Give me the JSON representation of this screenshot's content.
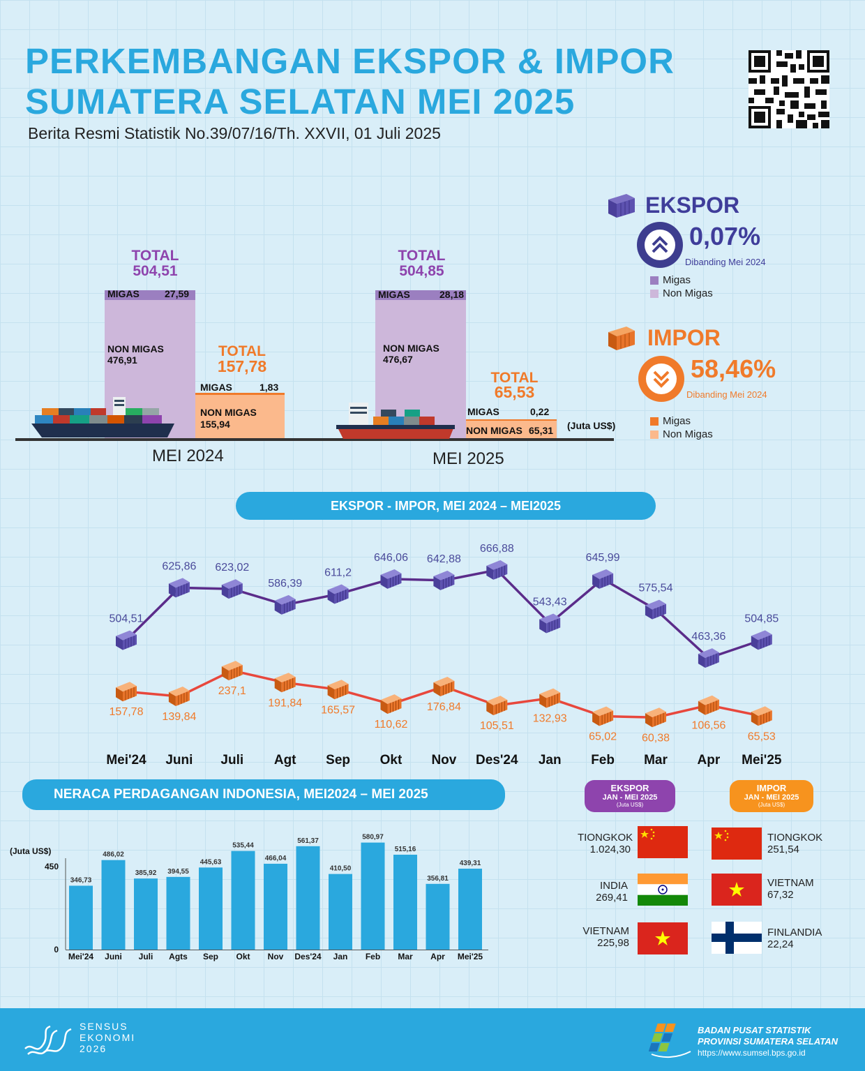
{
  "header": {
    "title_line1": "PERKEMBANGAN EKSPOR & IMPOR",
    "title_line2": "SUMATERA SELATAN MEI 2025",
    "subtitle": "Berita Resmi Statistik No.39/07/16/Th. XXVII, 01 Juli 2025"
  },
  "comparison": {
    "unit": "(Juta US$)",
    "migas_label": "MIGAS",
    "nonmigas_label": "NON MIGAS",
    "total_label": "TOTAL",
    "years": [
      {
        "label": "MEI 2024",
        "ekspor": {
          "total": "504,51",
          "migas": "27,59",
          "nonmigas": "476,91"
        },
        "impor": {
          "total": "157,78",
          "migas": "1,83",
          "nonmigas": "155,94"
        }
      },
      {
        "label": "MEI 2025",
        "ekspor": {
          "total": "504,85",
          "migas": "28,18",
          "nonmigas": "476,67"
        },
        "impor": {
          "total": "65,53",
          "migas": "0,22",
          "nonmigas": "65,31"
        }
      }
    ]
  },
  "summary": {
    "ekspor": {
      "title": "EKSPOR",
      "pct": "0,07%",
      "note": "Dibanding Mei 2024",
      "legend": [
        "Migas",
        "Non Migas"
      ],
      "colors": [
        "#9b7fc0",
        "#cdb7da"
      ]
    },
    "impor": {
      "title": "IMPOR",
      "pct": "58,46%",
      "note": "Dibanding Mei 2024",
      "legend": [
        "Migas",
        "Non Migas"
      ],
      "colors": [
        "#f07a2a",
        "#fbb98c"
      ]
    }
  },
  "chart_data": [
    {
      "type": "line",
      "title": "EKSPOR - IMPOR, MEI 2024 – MEI2025",
      "categories": [
        "Mei'24",
        "Juni",
        "Juli",
        "Agt",
        "Sep",
        "Okt",
        "Nov",
        "Des'24",
        "Jan",
        "Feb",
        "Mar",
        "Apr",
        "Mei'25"
      ],
      "series": [
        {
          "name": "Ekspor",
          "color": "#5b2c8a",
          "values": [
            504.51,
            625.86,
            623.02,
            586.39,
            611.2,
            646.06,
            642.88,
            666.88,
            543.43,
            645.99,
            575.54,
            463.36,
            504.85
          ],
          "labels": [
            "504,51",
            "625,86",
            "623,02",
            "586,39",
            "611,2",
            "646,06",
            "642,88",
            "666,88",
            "543,43",
            "645,99",
            "575,54",
            "463,36",
            "504,85"
          ]
        },
        {
          "name": "Impor",
          "color": "#e8473c",
          "values": [
            157.78,
            139.84,
            237.1,
            191.84,
            165.57,
            110.62,
            176.84,
            105.51,
            132.93,
            65.02,
            60.38,
            106.56,
            65.53
          ],
          "labels": [
            "157,78",
            "139,84",
            "237,1",
            "191,84",
            "165,57",
            "110,62",
            "176,84",
            "105,51",
            "132,93",
            "65,02",
            "60,38",
            "106,56",
            "65,53"
          ]
        }
      ]
    },
    {
      "type": "bar",
      "title": "NERACA PERDAGANGAN INDONESIA, MEI2024 – MEI 2025",
      "ylabel": "(Juta US$)",
      "yticks": [
        "450",
        "0"
      ],
      "ylim": [
        0,
        600
      ],
      "categories": [
        "Mei'24",
        "Juni",
        "Juli",
        "Agts",
        "Sep",
        "Okt",
        "Nov",
        "Des'24",
        "Jan",
        "Feb",
        "Mar",
        "Apr",
        "Mei'25"
      ],
      "values": [
        346.73,
        486.02,
        385.92,
        394.55,
        445.63,
        535.44,
        466.04,
        561.37,
        410.5,
        580.97,
        515.16,
        356.81,
        439.31
      ],
      "labels": [
        "346,73",
        "486,02",
        "385,92",
        "394,55",
        "445,63",
        "535,44",
        "466,04",
        "561,37",
        "410,50",
        "580,97",
        "515,16",
        "356,81",
        "439,31"
      ],
      "color": "#2aa8de"
    }
  ],
  "partners": {
    "ekspor": {
      "title": "EKSPOR",
      "period": "JAN - MEI 2025",
      "unit": "(Juta US$)",
      "countries": [
        {
          "name": "TIONGKOK",
          "value": "1.024,30",
          "flag": "china-flag"
        },
        {
          "name": "INDIA",
          "value": "269,41",
          "flag": "india-flag"
        },
        {
          "name": "VIETNAM",
          "value": "225,98",
          "flag": "vietnam-flag"
        }
      ]
    },
    "impor": {
      "title": "IMPOR",
      "period": "JAN - MEI 2025",
      "unit": "(Juta US$)",
      "countries": [
        {
          "name": "TIONGKOK",
          "value": "251,54",
          "flag": "china-flag"
        },
        {
          "name": "VIETNAM",
          "value": "67,32",
          "flag": "vietnam-flag"
        },
        {
          "name": "FINLANDIA",
          "value": "22,24",
          "flag": "finland-flag"
        }
      ]
    }
  },
  "footer": {
    "sensus_line1": "SENSUS",
    "sensus_line2": "EKONOMI",
    "sensus_year": "2026",
    "bps_line1": "BADAN PUSAT STATISTIK",
    "bps_line2": "PROVINSI SUMATERA SELATAN",
    "bps_url": "https://www.sumsel.bps.go.id"
  }
}
